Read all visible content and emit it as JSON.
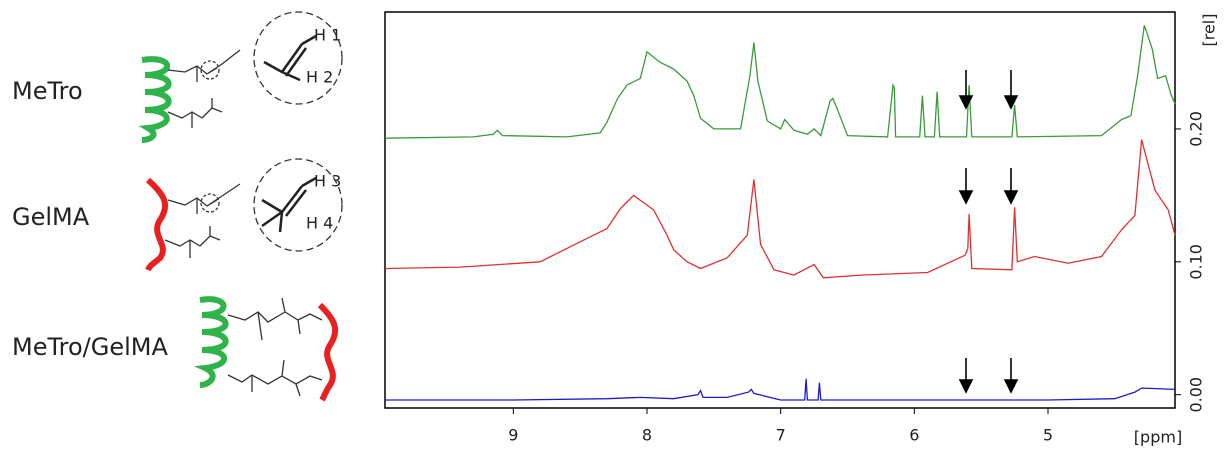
{
  "chart_data": {
    "type": "line",
    "x_label": "[ppm]",
    "y_label": "[rel]",
    "xlim": [
      9.96,
      4.05
    ],
    "ylim": [
      -0.01,
      0.288
    ],
    "xticks": [
      9,
      8,
      7,
      6,
      5
    ],
    "yticks": [
      {
        "value": 0,
        "label": "0.00"
      },
      {
        "value": 0.1,
        "label": "0.10"
      },
      {
        "value": 0.2,
        "label": "0.20"
      }
    ],
    "annotations": [
      "H 1",
      "H 2",
      "H 3",
      "H 4"
    ],
    "series": [
      {
        "name": "MeTro",
        "color": "#3a9a3a",
        "x": [
          9.96,
          9.3,
          9.15,
          9.12,
          9.08,
          8.6,
          8.35,
          8.3,
          8.22,
          8.15,
          8.05,
          8.0,
          7.95,
          7.9,
          7.8,
          7.7,
          7.65,
          7.6,
          7.5,
          7.3,
          7.23,
          7.2,
          7.17,
          7.1,
          7.0,
          6.97,
          6.9,
          6.8,
          6.75,
          6.7,
          6.63,
          6.61,
          6.58,
          6.5,
          6.2,
          6.16,
          6.15,
          6.14,
          5.96,
          5.94,
          5.92,
          5.85,
          5.83,
          5.81,
          5.61,
          5.59,
          5.57,
          5.27,
          5.25,
          5.23,
          4.6,
          4.45,
          4.38,
          4.33,
          4.28,
          4.22,
          4.18,
          4.12,
          4.08,
          4.05
        ],
        "values": [
          0.193,
          0.194,
          0.196,
          0.199,
          0.195,
          0.194,
          0.197,
          0.205,
          0.223,
          0.233,
          0.238,
          0.258,
          0.254,
          0.25,
          0.245,
          0.236,
          0.225,
          0.208,
          0.2,
          0.2,
          0.24,
          0.265,
          0.236,
          0.206,
          0.2,
          0.207,
          0.199,
          0.196,
          0.2,
          0.195,
          0.221,
          0.223,
          0.216,
          0.195,
          0.194,
          0.233,
          0.231,
          0.194,
          0.194,
          0.225,
          0.194,
          0.194,
          0.228,
          0.194,
          0.194,
          0.233,
          0.194,
          0.194,
          0.218,
          0.194,
          0.195,
          0.207,
          0.21,
          0.24,
          0.278,
          0.26,
          0.238,
          0.24,
          0.226,
          0.219
        ]
      },
      {
        "name": "GelMA",
        "color": "#e03030",
        "x": [
          9.96,
          9.4,
          8.8,
          8.4,
          8.3,
          8.2,
          8.1,
          7.95,
          7.85,
          7.8,
          7.7,
          7.6,
          7.4,
          7.25,
          7.2,
          7.15,
          7.05,
          6.9,
          6.75,
          6.68,
          6.4,
          5.9,
          5.62,
          5.6,
          5.59,
          5.57,
          5.27,
          5.25,
          5.23,
          5.1,
          4.85,
          4.6,
          4.45,
          4.35,
          4.3,
          4.2,
          4.1,
          4.05
        ],
        "values": [
          0.095,
          0.096,
          0.1,
          0.12,
          0.125,
          0.14,
          0.15,
          0.139,
          0.12,
          0.109,
          0.1,
          0.095,
          0.103,
          0.12,
          0.162,
          0.113,
          0.094,
          0.09,
          0.098,
          0.088,
          0.09,
          0.092,
          0.105,
          0.11,
          0.136,
          0.095,
          0.094,
          0.141,
          0.1,
          0.104,
          0.099,
          0.104,
          0.124,
          0.135,
          0.192,
          0.154,
          0.139,
          0.12
        ]
      },
      {
        "name": "MeTro/GelMA",
        "color": "#1a1ad0",
        "x": [
          9.96,
          9.0,
          8.3,
          8.05,
          7.8,
          7.62,
          7.6,
          7.58,
          7.4,
          7.24,
          7.22,
          7.2,
          7.0,
          6.82,
          6.81,
          6.8,
          6.72,
          6.71,
          6.7,
          6.0,
          5.0,
          4.5,
          4.35,
          4.3,
          4.05
        ],
        "values": [
          -0.004,
          -0.004,
          -0.003,
          -0.002,
          -0.003,
          0.0,
          0.003,
          -0.002,
          -0.002,
          0.002,
          0.004,
          0.001,
          -0.004,
          -0.004,
          0.012,
          -0.004,
          -0.004,
          0.009,
          -0.004,
          -0.004,
          -0.004,
          -0.003,
          0.002,
          0.005,
          0.004
        ]
      }
    ]
  }
}
